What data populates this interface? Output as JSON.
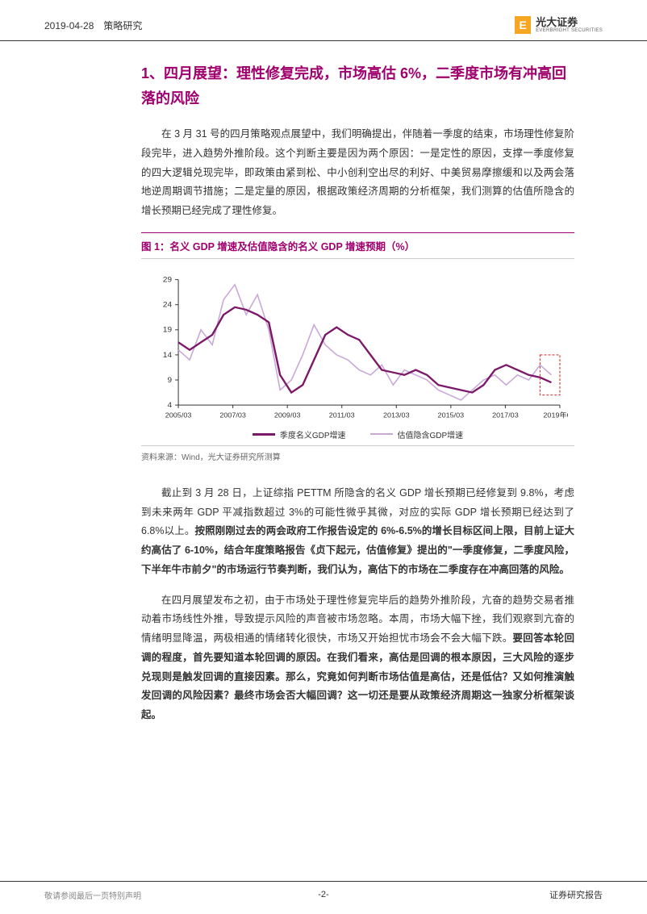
{
  "header": {
    "date_category": "2019-04-28　策略研究",
    "logo_cn": "光大证券",
    "logo_en": "EVERBRIGHT SECURITIES"
  },
  "section_title": "1、四月展望：理性修复完成，市场高估 6%，二季度市场有冲高回落的风险",
  "para1": "在 3 月 31 号的四月策略观点展望中，我们明确提出，伴随着一季度的结束，市场理性修复阶段完毕，进入趋势外推阶段。这个判断主要是因为两个原因：一是定性的原因，支撑一季度修复的四大逻辑兑现完毕，即政策由紧到松、中小创利空出尽的利好、中美贸易摩擦缓和以及两会落地逆周期调节措施；二是定量的原因，根据政策经济周期的分析框架，我们测算的估值所隐含的增长预期已经完成了理性修复。",
  "chart": {
    "title": "图 1：名义 GDP 增速及估值隐含的名义 GDP 增速预期（%）",
    "source": "资料来源：Wind，光大证券研究所测算",
    "y_ticks": [
      4,
      9,
      14,
      19,
      24,
      29
    ],
    "x_labels": [
      "2005/03",
      "2007/03",
      "2009/03",
      "2011/03",
      "2013/03",
      "2015/03",
      "2017/03",
      "2019年Q1"
    ],
    "legend1": "季度名义GDP增速",
    "legend2": "估值隐含GDP增速",
    "colors": {
      "line1": "#7b1968",
      "line2": "#c9a8d8",
      "axis": "#333333",
      "highlight_box": "#d84040"
    },
    "line1_points": [
      [
        0,
        16.5
      ],
      [
        4,
        15
      ],
      [
        8,
        16.5
      ],
      [
        12,
        18
      ],
      [
        16,
        22
      ],
      [
        20,
        23.5
      ],
      [
        24,
        23
      ],
      [
        28,
        22
      ],
      [
        32,
        20.5
      ],
      [
        36,
        10
      ],
      [
        40,
        6.5
      ],
      [
        44,
        8
      ],
      [
        48,
        13
      ],
      [
        52,
        18
      ],
      [
        56,
        19.5
      ],
      [
        60,
        18
      ],
      [
        64,
        17
      ],
      [
        68,
        14
      ],
      [
        72,
        11
      ],
      [
        76,
        10.5
      ],
      [
        80,
        10
      ],
      [
        84,
        11
      ],
      [
        88,
        10
      ],
      [
        92,
        8
      ],
      [
        96,
        7.5
      ],
      [
        100,
        7
      ],
      [
        104,
        6.5
      ],
      [
        108,
        8
      ],
      [
        112,
        11
      ],
      [
        116,
        12
      ],
      [
        120,
        11
      ],
      [
        124,
        10
      ],
      [
        128,
        9.5
      ],
      [
        132,
        8.5
      ]
    ],
    "line2_points": [
      [
        0,
        15
      ],
      [
        4,
        13
      ],
      [
        8,
        19
      ],
      [
        12,
        16
      ],
      [
        16,
        25
      ],
      [
        20,
        28
      ],
      [
        24,
        22
      ],
      [
        28,
        26
      ],
      [
        32,
        19
      ],
      [
        36,
        7
      ],
      [
        40,
        9
      ],
      [
        44,
        14
      ],
      [
        48,
        20
      ],
      [
        52,
        16
      ],
      [
        56,
        14
      ],
      [
        60,
        13
      ],
      [
        64,
        11
      ],
      [
        68,
        10
      ],
      [
        72,
        12
      ],
      [
        76,
        8
      ],
      [
        80,
        11
      ],
      [
        84,
        10
      ],
      [
        88,
        9
      ],
      [
        92,
        7
      ],
      [
        96,
        6
      ],
      [
        100,
        5
      ],
      [
        104,
        7
      ],
      [
        108,
        9
      ],
      [
        112,
        10
      ],
      [
        116,
        8
      ],
      [
        120,
        10
      ],
      [
        124,
        9
      ],
      [
        128,
        12
      ],
      [
        132,
        10
      ]
    ]
  },
  "para2_part1": "截止到 3 月 28 日，上证综指 PETTM 所隐含的名义 GDP 增长预期已经修复到 9.8%，考虑到未来两年 GDP 平减指数超过 3%的可能性微乎其微，对应的实际 GDP 增长预期已经达到了 6.8%以上。",
  "para2_bold": "按照刚刚过去的两会政府工作报告设定的 6%-6.5%的增长目标区间上限，目前上证大约高估了 6-10%，结合年度策略报告《贞下起元，估值修复》提出的\"一季度修复，二季度风险，下半年牛市前夕\"的市场运行节奏判断，我们认为，高估下的市场在二季度存在冲高回落的风险。",
  "para3_part1": "在四月展望发布之初，由于市场处于理性修复完毕后的趋势外推阶段，亢奋的趋势交易者推动着市场线性外推，导致提示风险的声音被市场忽略。本周，市场大幅下挫，我们观察到亢奋的情绪明显降温，两极相通的情绪转化很快，市场又开始担忧市场会不会大幅下跌。",
  "para3_bold": "要回答本轮回调的程度，首先要知道本轮回调的原因。在我们看来，高估是回调的根本原因，三大风险的逐步兑现则是触发回调的直接因素。那么，究竟如何判断市场估值是高估，还是低估？又如何推演触发回调的风险因素？最终市场会否大幅回调？这一切还是要从政策经济周期这一独家分析框架谈起。",
  "footer": {
    "left_text": "敬请参阅最后一页特别声明",
    "page": "-2-",
    "right_text": "证券研究报告"
  }
}
